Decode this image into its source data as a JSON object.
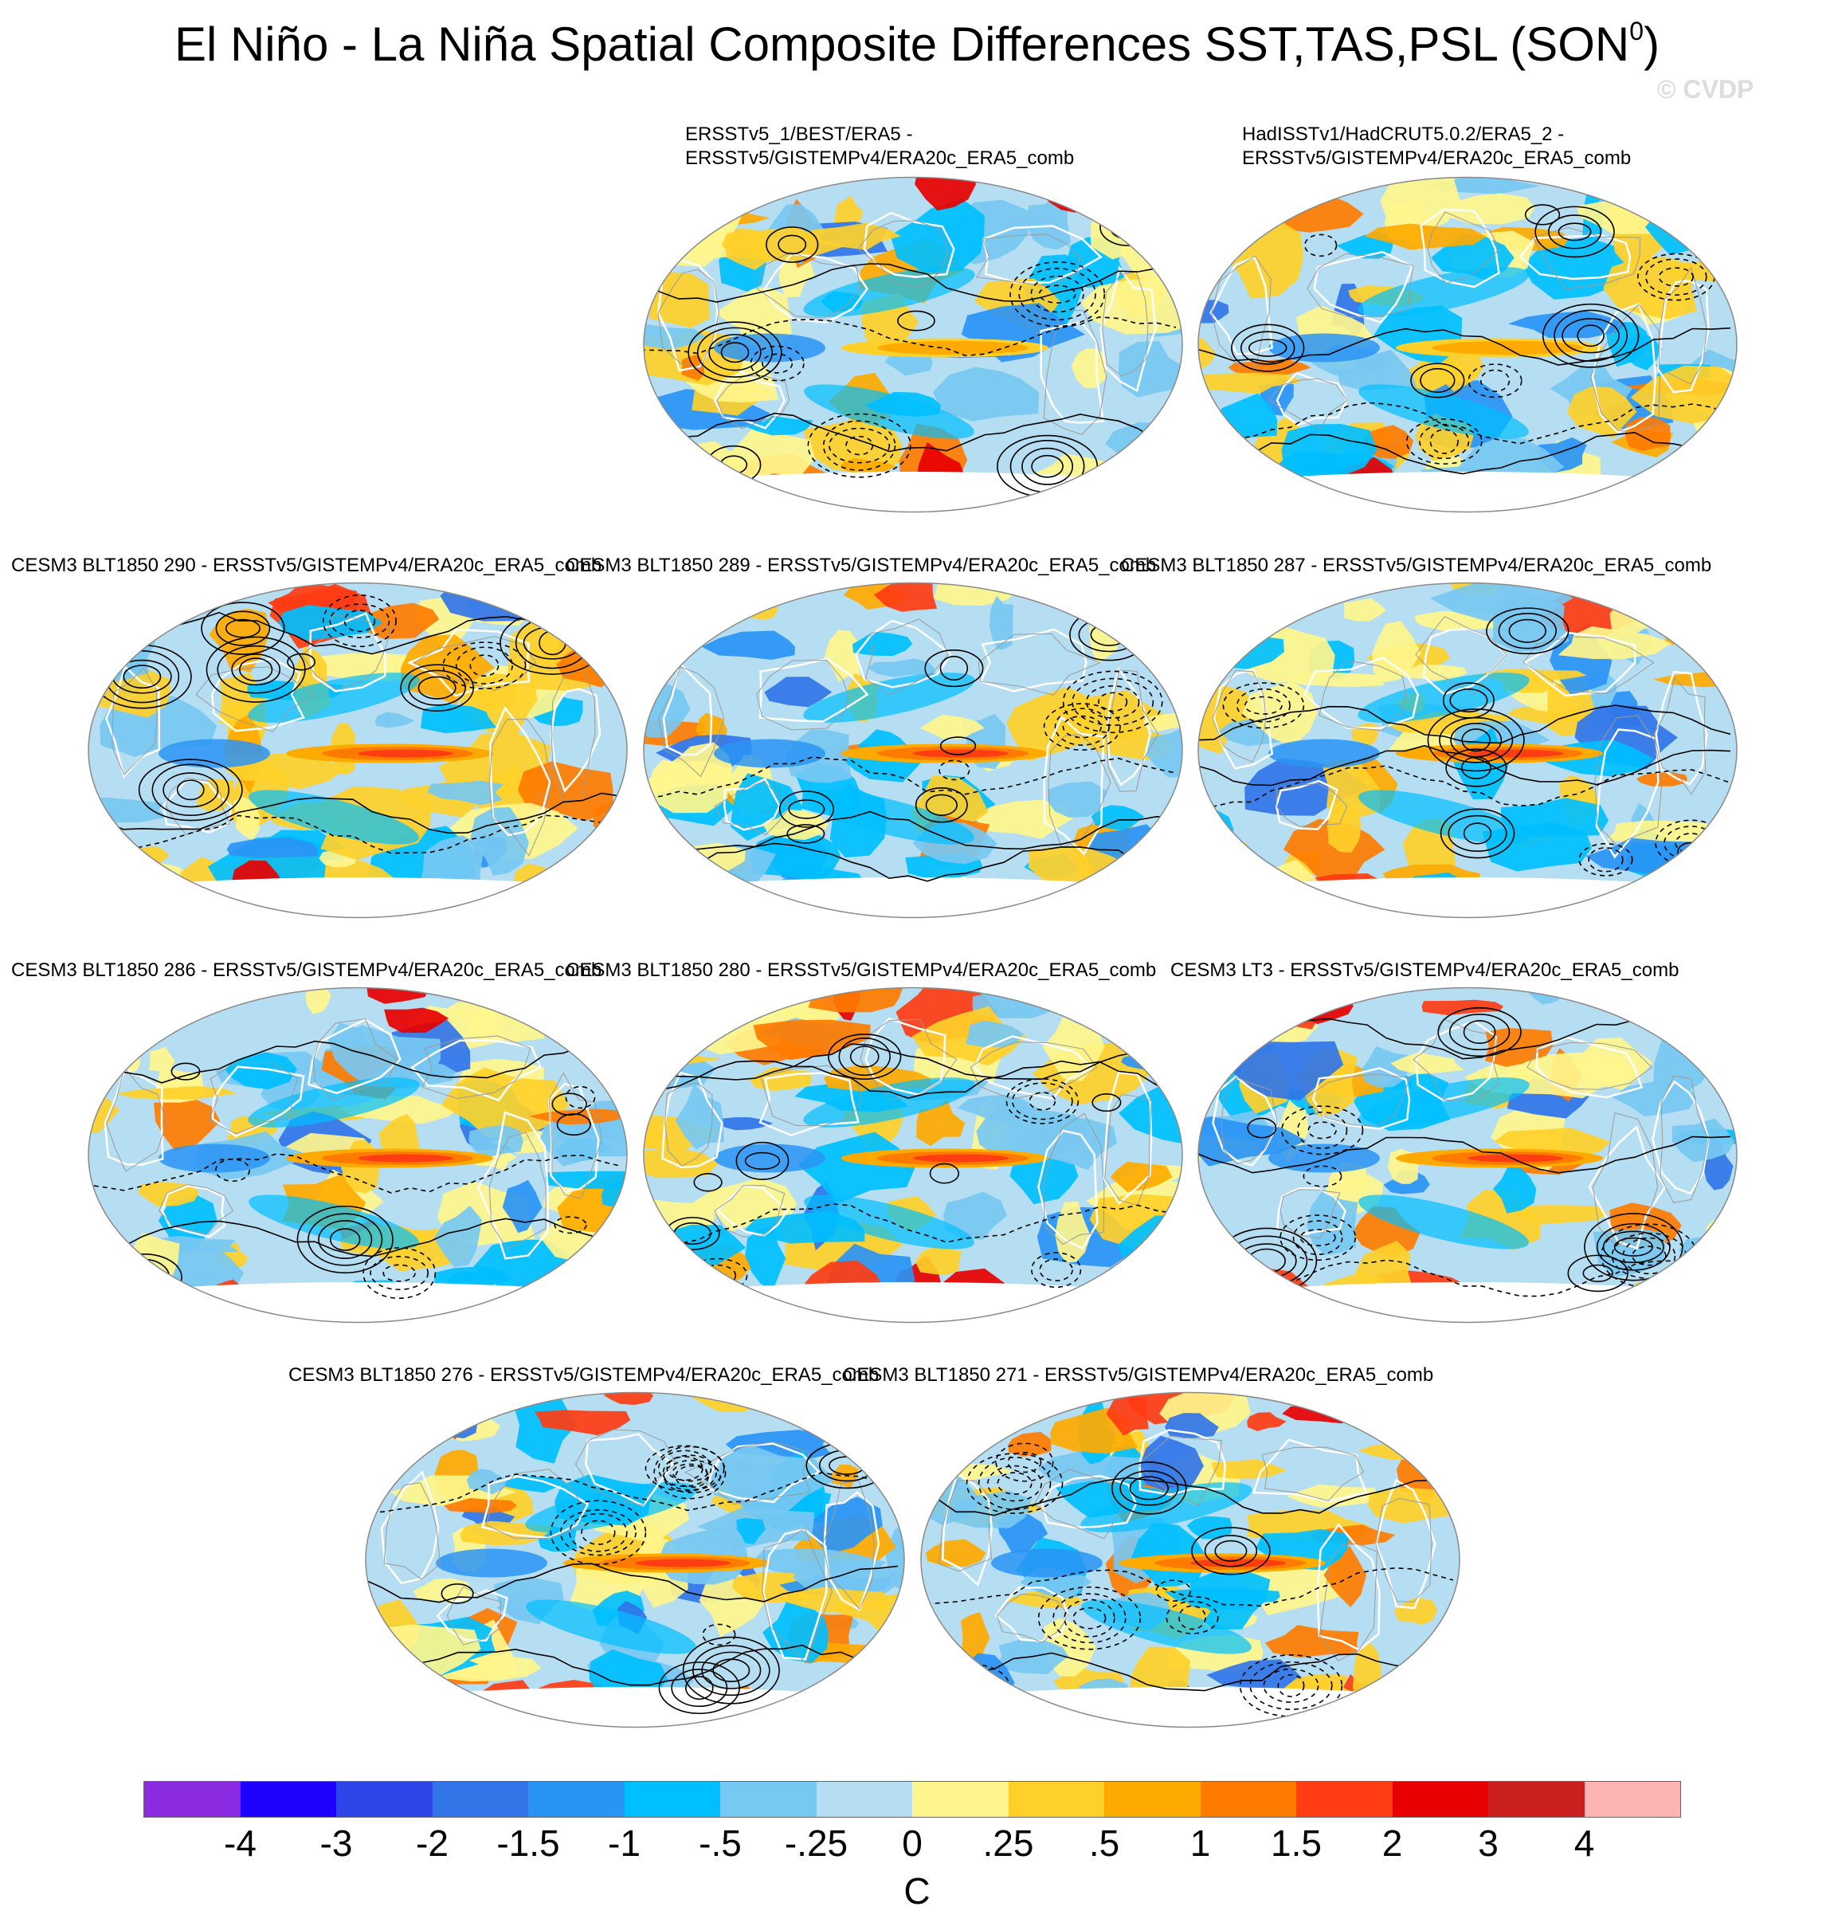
{
  "title": {
    "text": "El Niño - La Niña Spatial Composite Differences SST,TAS,PSL (SON",
    "superscript": "0",
    "closing": ")"
  },
  "watermark": "© CVDP",
  "panels": [
    {
      "line1": "ERSSTv5_1/BEST/ERA5 -",
      "line2": "ERSSTv5/GISTEMPv4/ERA20c_ERA5_comb"
    },
    {
      "line1": "HadISSTv1/HadCRUT5.0.2/ERA5_2 -",
      "line2": "ERSSTv5/GISTEMPv4/ERA20c_ERA5_comb"
    },
    {
      "line1": "CESM3 BLT1850 290 - ERSSTv5/GISTEMPv4/ERA20c_ERA5_comb"
    },
    {
      "line1": "CESM3 BLT1850 289 - ERSSTv5/GISTEMPv4/ERA20c_ERA5_comb"
    },
    {
      "line1": "CESM3 BLT1850 287 - ERSSTv5/GISTEMPv4/ERA20c_ERA5_comb"
    },
    {
      "line1": "CESM3 BLT1850 286 - ERSSTv5/GISTEMPv4/ERA20c_ERA5_comb"
    },
    {
      "line1": "CESM3 BLT1850 280 - ERSSTv5/GISTEMPv4/ERA20c_ERA5_comb"
    },
    {
      "line1": "CESM3 LT3 - ERSSTv5/GISTEMPv4/ERA20c_ERA5_comb"
    },
    {
      "line1": "CESM3 BLT1850 276 - ERSSTv5/GISTEMPv4/ERA20c_ERA5_comb"
    },
    {
      "line1": "CESM3 BLT1850 271 - ERSSTv5/GISTEMPv4/ERA20c_ERA5_comb"
    }
  ],
  "colorbar": {
    "unit": "C",
    "ticks": [
      "-4",
      "-3",
      "-2",
      "-1.5",
      "-1",
      "-.5",
      "-.25",
      "0",
      ".25",
      ".5",
      "1",
      "1.5",
      "2",
      "3",
      "4"
    ],
    "colors": [
      "#8a2be2",
      "#1e00ff",
      "#2c45e6",
      "#3175e8",
      "#2a94f5",
      "#00bfff",
      "#77c8f2",
      "#b6def2",
      "#fff58c",
      "#ffd02a",
      "#ffaa00",
      "#ff7b00",
      "#ff3c12",
      "#e80000",
      "#cc1f1f",
      "#ffb4b4"
    ]
  }
}
